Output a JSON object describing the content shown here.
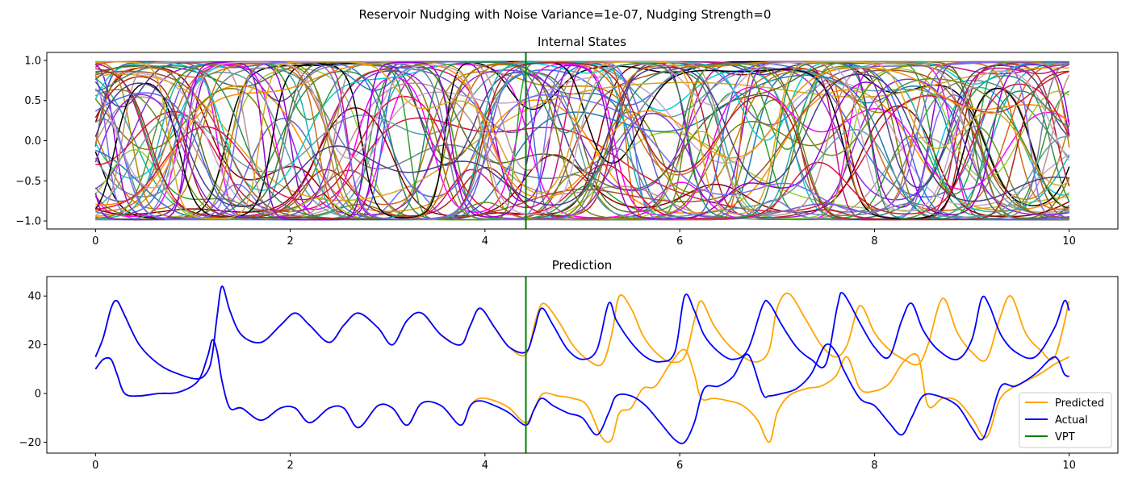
{
  "figure": {
    "suptitle": "Reservoir Nudging with Noise Variance=1e-07, Nudging Strength=0"
  },
  "chart_data": [
    {
      "type": "line",
      "title": "Internal States",
      "xlabel": "",
      "ylabel": "",
      "xlim": [
        -0.5,
        10.5
      ],
      "ylim": [
        -1.1,
        1.1
      ],
      "xticks": [
        0,
        2,
        4,
        6,
        8,
        10
      ],
      "yticks": [
        -1.0,
        -0.5,
        0.0,
        0.5,
        1.0
      ],
      "xtick_labels": [
        "0",
        "2",
        "4",
        "6",
        "8",
        "10"
      ],
      "ytick_labels": [
        "−1.0",
        "−0.5",
        "0.0",
        "0.5",
        "1.0"
      ],
      "vline": {
        "x": 4.42,
        "color": "#008000"
      },
      "series_count": 60,
      "series_colors": [
        "#ff00ff",
        "#8b0000",
        "#1f77b4",
        "#9acd32",
        "#2ca02c",
        "#6a5acd",
        "#808000",
        "#00ced1",
        "#c71585",
        "#556b2f",
        "#b8860b",
        "#bc8f8f",
        "#000000",
        "#4169e1",
        "#d2691e",
        "#20b2aa",
        "#8a2be2",
        "#a0522d",
        "#708090",
        "#ff8c00",
        "#6b8e23",
        "#dc143c",
        "#5f9ea0",
        "#9400d3",
        "#c8a2c8",
        "#2e8b57",
        "#b22222",
        "#7b68ee",
        "#daa520",
        "#483d8b"
      ],
      "note": "60 overlapping tanh reservoir trajectories bounded in [-1, 1]; individual values are not legible"
    },
    {
      "type": "line",
      "title": "Prediction",
      "xlabel": "",
      "ylabel": "",
      "xlim": [
        -0.5,
        10.5
      ],
      "ylim": [
        -24.5,
        48
      ],
      "xticks": [
        0,
        2,
        4,
        6,
        8,
        10
      ],
      "yticks": [
        -20,
        0,
        20,
        40
      ],
      "xtick_labels": [
        "0",
        "2",
        "4",
        "6",
        "8",
        "10"
      ],
      "ytick_labels": [
        "−20",
        "0",
        "20",
        "40"
      ],
      "vline": {
        "x": 4.42,
        "color": "#008000",
        "name": "VPT"
      },
      "legend": {
        "position": "lower-right",
        "entries": [
          "Predicted",
          "Actual",
          "VPT"
        ]
      },
      "series": [
        {
          "name": "Predicted",
          "color": "#ffa500",
          "components": [
            {
              "x": [
                0,
                0.08,
                0.16,
                0.22,
                0.3,
                0.45,
                0.65,
                0.85,
                1.05,
                1.15,
                1.2,
                1.25,
                1.3,
                1.38,
                1.5,
                1.7,
                1.9,
                2.05,
                2.2,
                2.4,
                2.55,
                2.7,
                2.9,
                3.05,
                3.2,
                3.35,
                3.55,
                3.75,
                3.85,
                3.95,
                4.1,
                4.25,
                4.42,
                4.52,
                4.6,
                4.75,
                4.9,
                5.05,
                5.2,
                5.3,
                5.38,
                5.5,
                5.62,
                5.75,
                5.9,
                6.05,
                6.15,
                6.22,
                6.35,
                6.5,
                6.65,
                6.8,
                6.92,
                7.0,
                7.12,
                7.3,
                7.45,
                7.6,
                7.72,
                7.85,
                8.0,
                8.15,
                8.3,
                8.45,
                8.55,
                8.7,
                8.85,
                9.0,
                9.15,
                9.28,
                9.4,
                9.55,
                9.7,
                9.85,
                10.0
              ],
              "y": [
                15,
                23,
                35,
                38,
                32,
                20,
                12,
                8,
                6,
                9,
                16,
                32,
                44,
                34,
                24,
                21,
                28,
                33,
                28,
                21,
                28,
                33,
                27,
                20,
                30,
                33,
                24,
                20,
                28,
                35,
                27,
                19,
                16,
                30,
                37,
                30,
                20,
                14,
                12,
                24,
                40,
                35,
                24,
                17,
                13,
                15,
                30,
                38,
                28,
                20,
                15,
                13,
                18,
                35,
                41,
                30,
                20,
                15,
                20,
                36,
                25,
                18,
                14,
                12,
                20,
                39,
                25,
                17,
                14,
                30,
                40,
                25,
                18,
                15,
                38
              ]
            },
            {
              "x": [
                0,
                0.08,
                0.16,
                0.22,
                0.3,
                0.45,
                0.65,
                0.85,
                1.05,
                1.15,
                1.2,
                1.25,
                1.3,
                1.38,
                1.5,
                1.7,
                1.9,
                2.05,
                2.2,
                2.4,
                2.55,
                2.7,
                2.9,
                3.05,
                3.2,
                3.35,
                3.55,
                3.75,
                3.85,
                3.95,
                4.1,
                4.25,
                4.42,
                4.52,
                4.6,
                4.75,
                4.9,
                5.05,
                5.2,
                5.3,
                5.38,
                5.5,
                5.62,
                5.75,
                5.9,
                6.05,
                6.15,
                6.22,
                6.35,
                6.5,
                6.65,
                6.8,
                6.92,
                7.0,
                7.12,
                7.3,
                7.45,
                7.6,
                7.72,
                7.85,
                8.0,
                8.15,
                8.3,
                8.45,
                8.55,
                8.7,
                8.85,
                9.0,
                9.15,
                9.28,
                9.4,
                9.55,
                9.7,
                9.85,
                10.0
              ],
              "y": [
                10,
                14,
                14,
                8,
                0,
                -1,
                0,
                0.5,
                5,
                15,
                22,
                17,
                5,
                -6,
                -6,
                -11,
                -6,
                -6,
                -12,
                -6,
                -6,
                -14,
                -5,
                -6,
                -13,
                -4,
                -5,
                -13,
                -5,
                -2,
                -3,
                -6,
                -12,
                -5,
                0,
                -1,
                -2,
                -5,
                -18,
                -19,
                -8,
                -6,
                2,
                3,
                12,
                18,
                8,
                -2,
                -2,
                -3,
                -5,
                -11,
                -20,
                -8,
                -1,
                2,
                3,
                7,
                15,
                2,
                1,
                4,
                13,
                15,
                -5,
                -2,
                -3,
                -10,
                -18,
                -3,
                2,
                5,
                8,
                12,
                15
              ]
            }
          ]
        },
        {
          "name": "Actual",
          "color": "#0000ff",
          "components": [
            {
              "x": [
                0,
                0.08,
                0.16,
                0.22,
                0.3,
                0.45,
                0.65,
                0.85,
                1.05,
                1.15,
                1.2,
                1.25,
                1.3,
                1.38,
                1.5,
                1.7,
                1.9,
                2.05,
                2.2,
                2.4,
                2.55,
                2.7,
                2.9,
                3.05,
                3.2,
                3.35,
                3.55,
                3.75,
                3.85,
                3.95,
                4.1,
                4.25,
                4.42,
                4.5,
                4.58,
                4.7,
                4.85,
                5.0,
                5.15,
                5.27,
                5.35,
                5.5,
                5.65,
                5.8,
                5.95,
                6.05,
                6.15,
                6.25,
                6.4,
                6.55,
                6.7,
                6.85,
                6.92,
                7.05,
                7.2,
                7.35,
                7.5,
                7.62,
                7.68,
                7.85,
                8.0,
                8.15,
                8.28,
                8.38,
                8.5,
                8.65,
                8.85,
                9.0,
                9.1,
                9.18,
                9.3,
                9.45,
                9.65,
                9.85,
                9.95,
                10.0
              ],
              "y": [
                15,
                23,
                35,
                38,
                32,
                20,
                12,
                8,
                6,
                9,
                16,
                32,
                44,
                34,
                24,
                21,
                28,
                33,
                28,
                21,
                28,
                33,
                27,
                20,
                30,
                33,
                24,
                20,
                28,
                35,
                27,
                19,
                17,
                25,
                35,
                28,
                18,
                14,
                18,
                37,
                30,
                21,
                15,
                13,
                17,
                40,
                34,
                24,
                17,
                14,
                18,
                36,
                37,
                28,
                19,
                14,
                12,
                36,
                41,
                29,
                19,
                15,
                30,
                37,
                26,
                18,
                14,
                22,
                39,
                36,
                24,
                17,
                15,
                27,
                38,
                34
              ]
            },
            {
              "x": [
                0,
                0.08,
                0.16,
                0.22,
                0.3,
                0.45,
                0.65,
                0.85,
                1.05,
                1.15,
                1.2,
                1.25,
                1.3,
                1.38,
                1.5,
                1.7,
                1.9,
                2.05,
                2.2,
                2.4,
                2.55,
                2.7,
                2.9,
                3.05,
                3.2,
                3.35,
                3.55,
                3.75,
                3.85,
                3.95,
                4.1,
                4.25,
                4.42,
                4.5,
                4.58,
                4.7,
                4.85,
                5.0,
                5.15,
                5.27,
                5.35,
                5.5,
                5.65,
                5.8,
                5.95,
                6.05,
                6.15,
                6.25,
                6.4,
                6.55,
                6.7,
                6.85,
                6.92,
                7.05,
                7.2,
                7.35,
                7.5,
                7.62,
                7.68,
                7.85,
                8.0,
                8.15,
                8.28,
                8.38,
                8.5,
                8.65,
                8.85,
                9.0,
                9.1,
                9.18,
                9.3,
                9.45,
                9.65,
                9.85,
                9.95,
                10.0
              ],
              "y": [
                10,
                14,
                14,
                8,
                0,
                -1,
                0,
                0.5,
                5,
                15,
                22,
                17,
                5,
                -6,
                -6,
                -11,
                -6,
                -6,
                -12,
                -6,
                -6,
                -14,
                -5,
                -6,
                -13,
                -4,
                -5,
                -13,
                -5,
                -3,
                -5,
                -8,
                -13,
                -7,
                -2,
                -5,
                -8,
                -10,
                -17,
                -8,
                -1,
                -1,
                -5,
                -12,
                -19,
                -20,
                -12,
                2,
                3,
                7,
                16,
                0,
                -1,
                0,
                2,
                8,
                20,
                16,
                10,
                -2,
                -5,
                -12,
                -17,
                -10,
                -1,
                -1,
                -5,
                -14,
                -19,
                -12,
                3,
                3,
                8,
                15,
                8,
                7
              ]
            }
          ]
        }
      ]
    }
  ]
}
